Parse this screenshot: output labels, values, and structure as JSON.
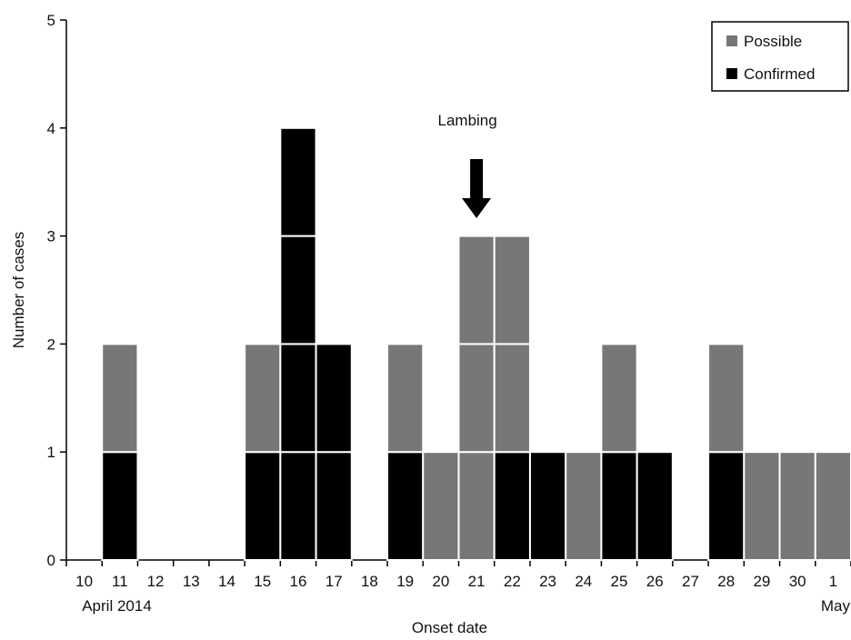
{
  "chart_data": {
    "type": "bar",
    "stacked": true,
    "unit_stacked": true,
    "xlabel": "Onset date",
    "ylabel": "Number of cases",
    "ylim": [
      0,
      5
    ],
    "yticks": [
      "0",
      "1",
      "2",
      "3",
      "4",
      "5"
    ],
    "categories": [
      "10",
      "11",
      "12",
      "13",
      "14",
      "15",
      "16",
      "17",
      "18",
      "19",
      "20",
      "21",
      "22",
      "23",
      "24",
      "25",
      "26",
      "27",
      "28",
      "29",
      "30",
      "1"
    ],
    "month_labels": [
      {
        "text": "April 2014",
        "at_category": "11"
      },
      {
        "text": "May",
        "at_category": "1"
      }
    ],
    "series": [
      {
        "name": "Confirmed",
        "color": "#000000",
        "values": [
          0,
          1,
          0,
          0,
          0,
          1,
          4,
          2,
          0,
          1,
          0,
          0,
          1,
          1,
          0,
          1,
          1,
          0,
          1,
          0,
          0,
          0
        ]
      },
      {
        "name": "Possible",
        "color": "#777777",
        "values": [
          0,
          1,
          0,
          0,
          0,
          1,
          0,
          0,
          0,
          1,
          1,
          3,
          2,
          0,
          1,
          1,
          0,
          0,
          1,
          1,
          1,
          1
        ]
      }
    ],
    "legend": {
      "position": "top-right",
      "order": [
        "Possible",
        "Confirmed"
      ]
    },
    "annotations": [
      {
        "text": "Lambing",
        "at_category": "21",
        "type": "down-arrow"
      }
    ],
    "grid": false
  }
}
